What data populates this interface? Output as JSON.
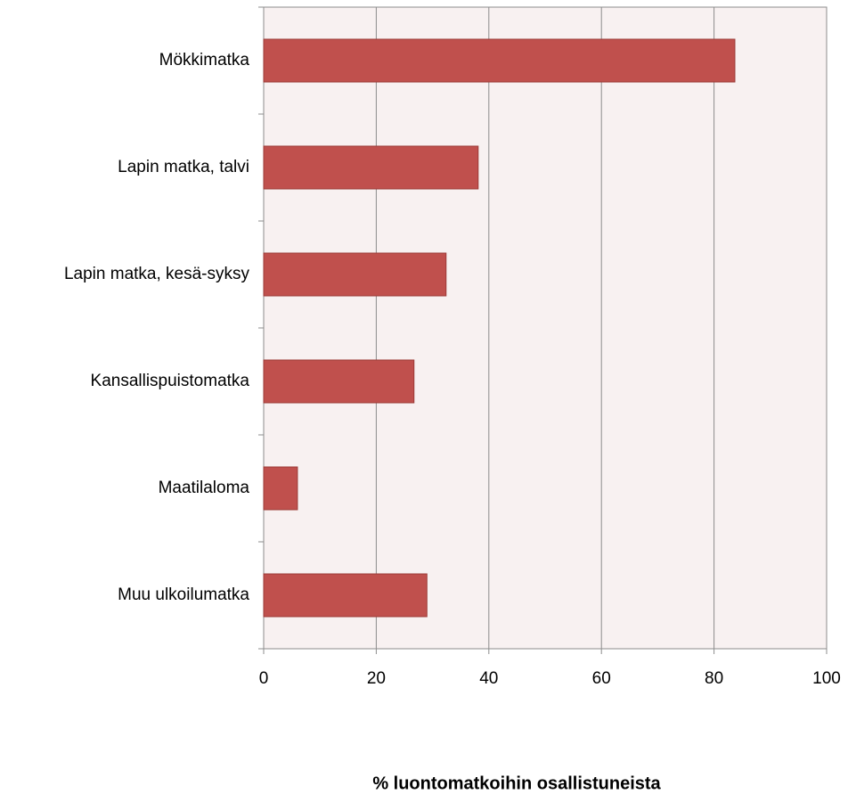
{
  "chart_data": {
    "type": "bar",
    "orientation": "horizontal",
    "xlabel": "% luontomatkoihin osallistuneista",
    "categories": [
      "Mökkimatka",
      "Lapin matka, talvi",
      "Lapin matka, kesä-syksy",
      "Kansallispuistomatka",
      "Maatilaloma",
      "Muu ulkoilumatka"
    ],
    "values": [
      83.7,
      38.1,
      32.4,
      26.7,
      6.0,
      29.0
    ],
    "color": "#c0504d",
    "xlim": [
      0,
      100
    ],
    "xticks": [
      0,
      20,
      40,
      60,
      80,
      100
    ],
    "grid": true
  }
}
